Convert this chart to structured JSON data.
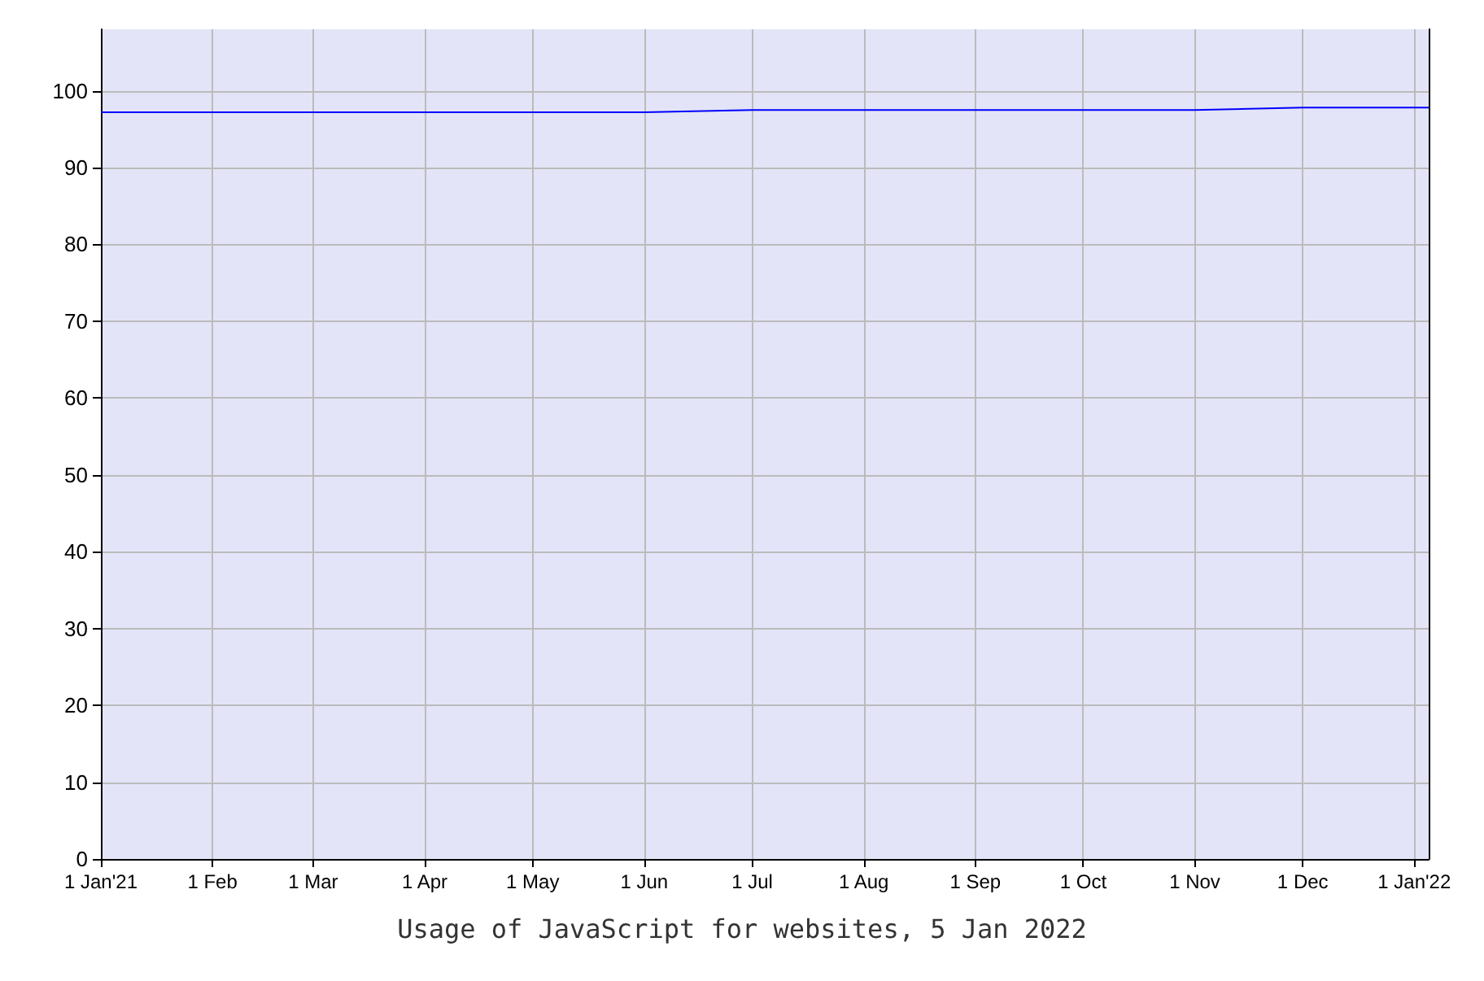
{
  "chart_data": {
    "type": "line",
    "annotations": [
      "Usage of JavaScript for websites, 5 Jan 2022"
    ],
    "x": [
      "2021-01-01",
      "2021-06-01",
      "2021-07-01",
      "2021-11-01",
      "2021-12-01",
      "2022-01-05"
    ],
    "series": [
      {
        "color": "#0000ff",
        "values": [
          97.2,
          97.2,
          97.5,
          97.5,
          97.8,
          97.8
        ]
      }
    ],
    "xlim": [
      "2021-01-01",
      "2022-01-05"
    ],
    "xticks": [
      {
        "value": "2021-01-01",
        "label": "1 Jan'21"
      },
      {
        "value": "2021-02-01",
        "label": "1 Feb"
      },
      {
        "value": "2021-03-01",
        "label": "1 Mar"
      },
      {
        "value": "2021-04-01",
        "label": "1 Apr"
      },
      {
        "value": "2021-05-01",
        "label": "1 May"
      },
      {
        "value": "2021-06-01",
        "label": "1 Jun"
      },
      {
        "value": "2021-07-01",
        "label": "1 Jul"
      },
      {
        "value": "2021-08-01",
        "label": "1 Aug"
      },
      {
        "value": "2021-09-01",
        "label": "1 Sep"
      },
      {
        "value": "2021-10-01",
        "label": "1 Oct"
      },
      {
        "value": "2021-11-01",
        "label": "1 Nov"
      },
      {
        "value": "2021-12-01",
        "label": "1 Dec"
      },
      {
        "value": "2022-01-01",
        "label": "1 Jan'22"
      }
    ],
    "ylim": [
      0,
      108
    ],
    "yticks": [
      0,
      10,
      20,
      30,
      40,
      50,
      60,
      70,
      80,
      90,
      100
    ],
    "grid": true,
    "marker": "none",
    "line_style": "solid"
  }
}
